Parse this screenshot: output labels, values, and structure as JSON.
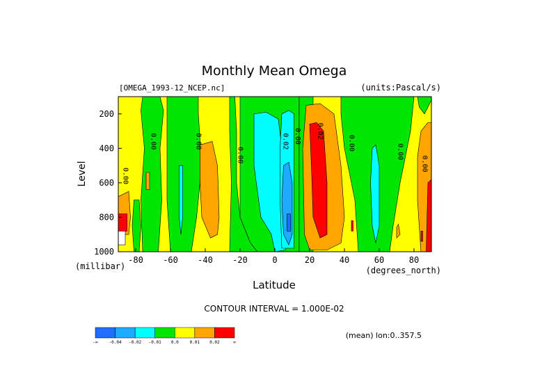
{
  "chart_data": {
    "type": "heatmap",
    "title": "Monthly Mean Omega",
    "dataset_label": "[OMEGA_1993-12_NCEP.nc]",
    "units_label": "(units:Pascal/s)",
    "xlabel": "Latitude",
    "x_unit_label": "(degrees_north)",
    "ylabel": "Level",
    "y_unit_label": "(millibar)",
    "xlim": [
      -90,
      90
    ],
    "ylim": [
      1000,
      100
    ],
    "x_ticks": [
      -80,
      -60,
      -40,
      -20,
      0,
      20,
      40,
      60,
      80
    ],
    "y_ticks": [
      200,
      400,
      600,
      800,
      1000
    ],
    "contour_interval_text": "CONTOUR INTERVAL = 1.000E-02",
    "footer_text": "(mean) lon:0..357.5",
    "contour_labels": [
      {
        "text": "0.00",
        "x": -87,
        "y": 560
      },
      {
        "text": "0.00",
        "x": -71,
        "y": 360
      },
      {
        "text": "0.00",
        "x": -45,
        "y": 360
      },
      {
        "text": "0.00",
        "x": -21,
        "y": 440
      },
      {
        "text": "0.02",
        "x": 5,
        "y": 360
      },
      {
        "text": "0.00",
        "x": 12,
        "y": 330
      },
      {
        "text": "0.02",
        "x": 25,
        "y": 300
      },
      {
        "text": "0.00",
        "x": 43,
        "y": 370
      },
      {
        "text": "0.00",
        "x": 71,
        "y": 420
      },
      {
        "text": "0.00",
        "x": 85,
        "y": 490
      }
    ],
    "colorbar": {
      "colors": [
        "#1e6eff",
        "#1eaaff",
        "#00ffff",
        "#00e600",
        "#ffff00",
        "#ffa500",
        "#ff0000"
      ],
      "labels": [
        "-∞",
        "-0.04",
        "-0.02",
        "-0.01",
        "0.0",
        "0.01",
        "0.02",
        "∞"
      ]
    },
    "regions": [
      {
        "color": "#ffff00",
        "pts": [
          [
            -90,
            100
          ],
          [
            90,
            100
          ],
          [
            90,
            1000
          ],
          [
            -90,
            1000
          ]
        ]
      },
      {
        "color": "#00e600",
        "pts": [
          [
            -76,
            100
          ],
          [
            -66,
            100
          ],
          [
            -64,
            180
          ],
          [
            -66,
            400
          ],
          [
            -65,
            700
          ],
          [
            -67,
            1000
          ],
          [
            -76,
            1000
          ],
          [
            -77,
            700
          ],
          [
            -75,
            400
          ],
          [
            -77,
            180
          ]
        ]
      },
      {
        "color": "#00e600",
        "pts": [
          [
            -62,
            100
          ],
          [
            -44,
            100
          ],
          [
            -44,
            200
          ],
          [
            -42,
            500
          ],
          [
            -45,
            800
          ],
          [
            -48,
            1000
          ],
          [
            -60,
            1000
          ],
          [
            -62,
            700
          ],
          [
            -62,
            300
          ]
        ]
      },
      {
        "color": "#00e600",
        "pts": [
          [
            -26,
            100
          ],
          [
            -23,
            100
          ],
          [
            -22,
            300
          ],
          [
            -22,
            600
          ],
          [
            -20,
            800
          ],
          [
            -14,
            950
          ],
          [
            -10,
            1000
          ],
          [
            -26,
            1000
          ],
          [
            -25,
            600
          ],
          [
            -26,
            300
          ]
        ]
      },
      {
        "color": "#00e600",
        "pts": [
          [
            -20,
            100
          ],
          [
            14,
            100
          ],
          [
            14,
            1000
          ],
          [
            -10,
            1000
          ],
          [
            -14,
            950
          ],
          [
            -20,
            800
          ],
          [
            -20,
            300
          ]
        ]
      },
      {
        "color": "#00e600",
        "pts": [
          [
            14,
            100
          ],
          [
            22,
            100
          ],
          [
            22,
            1000
          ],
          [
            14,
            1000
          ]
        ]
      },
      {
        "color": "#00e600",
        "pts": [
          [
            38,
            100
          ],
          [
            80,
            100
          ],
          [
            78,
            300
          ],
          [
            72,
            600
          ],
          [
            68,
            850
          ],
          [
            66,
            1000
          ],
          [
            48,
            1000
          ],
          [
            46,
            700
          ],
          [
            40,
            400
          ],
          [
            38,
            200
          ]
        ]
      },
      {
        "color": "#00e600",
        "pts": [
          [
            82,
            100
          ],
          [
            90,
            100
          ],
          [
            90,
            120
          ],
          [
            86,
            200
          ],
          [
            83,
            160
          ]
        ]
      },
      {
        "color": "#00e600",
        "pts": [
          [
            -81,
            700
          ],
          [
            -78,
            700
          ],
          [
            -77,
            850
          ],
          [
            -78,
            1000
          ],
          [
            -81,
            1000
          ],
          [
            -82,
            850
          ]
        ]
      },
      {
        "color": "#00ffff",
        "pts": [
          [
            -12,
            200
          ],
          [
            -5,
            190
          ],
          [
            2,
            230
          ],
          [
            4,
            400
          ],
          [
            6,
            700
          ],
          [
            8,
            900
          ],
          [
            6,
            990
          ],
          [
            0,
            1000
          ],
          [
            -2,
            900
          ],
          [
            -8,
            800
          ],
          [
            -12,
            500
          ]
        ]
      },
      {
        "color": "#00ffff",
        "pts": [
          [
            4,
            200
          ],
          [
            8,
            180
          ],
          [
            11,
            200
          ],
          [
            11,
            500
          ],
          [
            11,
            980
          ],
          [
            4,
            980
          ],
          [
            3,
            700
          ],
          [
            3,
            400
          ]
        ]
      },
      {
        "color": "#00ffff",
        "pts": [
          [
            -55,
            500
          ],
          [
            -53,
            500
          ],
          [
            -53,
            800
          ],
          [
            -54,
            900
          ],
          [
            -55,
            800
          ]
        ]
      },
      {
        "color": "#00ffff",
        "pts": [
          [
            56,
            400
          ],
          [
            58,
            380
          ],
          [
            60,
            500
          ],
          [
            60,
            850
          ],
          [
            58,
            950
          ],
          [
            56,
            850
          ],
          [
            55,
            600
          ]
        ]
      },
      {
        "color": "#1eaaff",
        "pts": [
          [
            5,
            500
          ],
          [
            8,
            480
          ],
          [
            10,
            600
          ],
          [
            10,
            900
          ],
          [
            8,
            960
          ],
          [
            5,
            900
          ],
          [
            4,
            700
          ]
        ]
      },
      {
        "color": "#1e6eff",
        "pts": [
          [
            7,
            780
          ],
          [
            9,
            780
          ],
          [
            9,
            880
          ],
          [
            7,
            880
          ]
        ]
      },
      {
        "color": "#ffa500",
        "pts": [
          [
            -43,
            380
          ],
          [
            -36,
            360
          ],
          [
            -33,
            500
          ],
          [
            -32,
            800
          ],
          [
            -33,
            900
          ],
          [
            -37,
            920
          ],
          [
            -42,
            800
          ],
          [
            -43,
            600
          ]
        ]
      },
      {
        "color": "#ffa500",
        "pts": [
          [
            -74,
            540
          ],
          [
            -72,
            540
          ],
          [
            -72,
            640
          ],
          [
            -74,
            640
          ]
        ]
      },
      {
        "color": "#ffa500",
        "pts": [
          [
            -90,
            680
          ],
          [
            -84,
            650
          ],
          [
            -83,
            800
          ],
          [
            -84,
            900
          ],
          [
            -90,
            900
          ]
        ]
      },
      {
        "color": "#ffa500",
        "pts": [
          [
            18,
            150
          ],
          [
            26,
            140
          ],
          [
            34,
            200
          ],
          [
            38,
            500
          ],
          [
            40,
            800
          ],
          [
            38,
            950
          ],
          [
            30,
            990
          ],
          [
            20,
            990
          ],
          [
            17,
            900
          ],
          [
            16,
            400
          ]
        ]
      },
      {
        "color": "#ffa500",
        "pts": [
          [
            84,
            300
          ],
          [
            88,
            250
          ],
          [
            90,
            250
          ],
          [
            90,
            1000
          ],
          [
            84,
            1000
          ],
          [
            82,
            700
          ],
          [
            82,
            450
          ]
        ]
      },
      {
        "color": "#ffa500",
        "pts": [
          [
            70,
            860
          ],
          [
            71,
            840
          ],
          [
            72,
            900
          ],
          [
            70,
            920
          ]
        ]
      },
      {
        "color": "#ff0000",
        "pts": [
          [
            20,
            260
          ],
          [
            24,
            250
          ],
          [
            28,
            300
          ],
          [
            30,
            600
          ],
          [
            30,
            900
          ],
          [
            26,
            920
          ],
          [
            22,
            800
          ],
          [
            21,
            500
          ]
        ]
      },
      {
        "color": "#ff0000",
        "pts": [
          [
            88,
            600
          ],
          [
            90,
            580
          ],
          [
            90,
            1000
          ],
          [
            87,
            1000
          ]
        ]
      },
      {
        "color": "#ff0000",
        "pts": [
          [
            -90,
            780
          ],
          [
            -85,
            780
          ],
          [
            -85,
            880
          ],
          [
            -90,
            880
          ]
        ]
      },
      {
        "color": "#ff0000",
        "pts": [
          [
            84,
            880
          ],
          [
            85,
            880
          ],
          [
            85,
            940
          ],
          [
            84,
            940
          ]
        ]
      },
      {
        "color": "#ff0000",
        "pts": [
          [
            44,
            820
          ],
          [
            45,
            820
          ],
          [
            45,
            880
          ],
          [
            44,
            880
          ]
        ]
      },
      {
        "color": "#ffffff",
        "pts": [
          [
            -90,
            880
          ],
          [
            -86,
            880
          ],
          [
            -86,
            960
          ],
          [
            -90,
            960
          ]
        ]
      }
    ]
  }
}
